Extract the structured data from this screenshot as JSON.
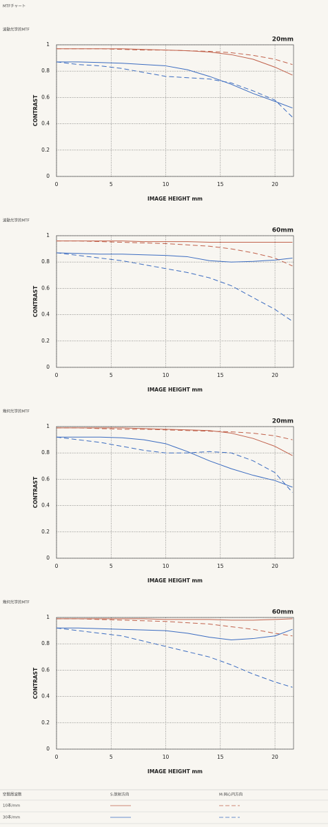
{
  "header": {
    "title": "MTFチャート"
  },
  "chart_data": [
    {
      "type": "line",
      "subtitle": "波動光学的MTF",
      "title": "20mm",
      "xlabel": "IMAGE HEIGHT  mm",
      "ylabel": "CONTRAST",
      "xlim": [
        0,
        21.7
      ],
      "xticks": [
        0,
        5,
        10,
        15,
        20
      ],
      "ylim": [
        0,
        1
      ],
      "yticks": [
        0,
        0.2,
        0.4,
        0.6,
        0.8,
        1
      ],
      "grid": true,
      "x": [
        0,
        2,
        4,
        6,
        8,
        10,
        12,
        14,
        16,
        18,
        20,
        21.6
      ],
      "series": [
        {
          "color": "#c0604a",
          "dash": false,
          "values": [
            0.97,
            0.97,
            0.97,
            0.97,
            0.965,
            0.96,
            0.955,
            0.945,
            0.925,
            0.89,
            0.83,
            0.77
          ]
        },
        {
          "color": "#c0604a",
          "dash": true,
          "values": [
            0.97,
            0.97,
            0.97,
            0.965,
            0.96,
            0.96,
            0.955,
            0.95,
            0.94,
            0.92,
            0.89,
            0.85
          ]
        },
        {
          "color": "#3a6bc0",
          "dash": false,
          "values": [
            0.87,
            0.87,
            0.865,
            0.86,
            0.85,
            0.84,
            0.81,
            0.76,
            0.7,
            0.63,
            0.57,
            0.52
          ]
        },
        {
          "color": "#3a6bc0",
          "dash": true,
          "values": [
            0.87,
            0.85,
            0.84,
            0.82,
            0.79,
            0.76,
            0.75,
            0.74,
            0.71,
            0.65,
            0.58,
            0.45
          ]
        }
      ]
    },
    {
      "type": "line",
      "subtitle": "波動光学的MTF",
      "title": "60mm",
      "xlabel": "IMAGE HEIGHT  mm",
      "ylabel": "CONTRAST",
      "xlim": [
        0,
        21.7
      ],
      "xticks": [
        0,
        5,
        10,
        15,
        20
      ],
      "ylim": [
        0,
        1
      ],
      "yticks": [
        0,
        0.2,
        0.4,
        0.6,
        0.8,
        1
      ],
      "grid": true,
      "x": [
        0,
        2,
        4,
        6,
        8,
        10,
        12,
        14,
        16,
        18,
        20,
        21.6
      ],
      "series": [
        {
          "color": "#c0604a",
          "dash": false,
          "values": [
            0.96,
            0.96,
            0.96,
            0.96,
            0.955,
            0.955,
            0.955,
            0.95,
            0.95,
            0.95,
            0.95,
            0.95
          ]
        },
        {
          "color": "#c0604a",
          "dash": true,
          "values": [
            0.96,
            0.96,
            0.955,
            0.95,
            0.945,
            0.94,
            0.93,
            0.92,
            0.9,
            0.87,
            0.83,
            0.77
          ]
        },
        {
          "color": "#3a6bc0",
          "dash": false,
          "values": [
            0.87,
            0.865,
            0.86,
            0.86,
            0.855,
            0.85,
            0.84,
            0.81,
            0.8,
            0.805,
            0.815,
            0.83
          ]
        },
        {
          "color": "#3a6bc0",
          "dash": true,
          "values": [
            0.87,
            0.85,
            0.83,
            0.81,
            0.78,
            0.75,
            0.72,
            0.68,
            0.62,
            0.53,
            0.44,
            0.35
          ]
        }
      ]
    },
    {
      "type": "line",
      "subtitle": "幾何光学的MTF",
      "title": "20mm",
      "xlabel": "IMAGE HEIGHT  mm",
      "ylabel": "CONTRAST",
      "xlim": [
        0,
        21.7
      ],
      "xticks": [
        0,
        5,
        10,
        15,
        20
      ],
      "ylim": [
        0,
        1
      ],
      "yticks": [
        0,
        0.2,
        0.4,
        0.6,
        0.8,
        1
      ],
      "grid": true,
      "x": [
        0,
        2,
        4,
        6,
        8,
        10,
        12,
        14,
        16,
        18,
        20,
        21.6
      ],
      "series": [
        {
          "color": "#c0604a",
          "dash": false,
          "values": [
            0.99,
            0.99,
            0.99,
            0.99,
            0.985,
            0.98,
            0.975,
            0.97,
            0.95,
            0.91,
            0.85,
            0.78
          ]
        },
        {
          "color": "#c0604a",
          "dash": true,
          "values": [
            0.99,
            0.99,
            0.985,
            0.98,
            0.98,
            0.975,
            0.97,
            0.965,
            0.96,
            0.95,
            0.93,
            0.9
          ]
        },
        {
          "color": "#3a6bc0",
          "dash": false,
          "values": [
            0.92,
            0.92,
            0.92,
            0.915,
            0.9,
            0.87,
            0.81,
            0.74,
            0.68,
            0.63,
            0.59,
            0.54
          ]
        },
        {
          "color": "#3a6bc0",
          "dash": true,
          "values": [
            0.92,
            0.9,
            0.88,
            0.85,
            0.82,
            0.8,
            0.8,
            0.81,
            0.8,
            0.74,
            0.65,
            0.5
          ]
        }
      ]
    },
    {
      "type": "line",
      "subtitle": "幾何光学的MTF",
      "title": "60mm",
      "xlabel": "IMAGE HEIGHT  mm",
      "ylabel": "CONTRAST",
      "xlim": [
        0,
        21.7
      ],
      "xticks": [
        0,
        5,
        10,
        15,
        20
      ],
      "ylim": [
        0,
        1
      ],
      "yticks": [
        0,
        0.2,
        0.4,
        0.6,
        0.8,
        1
      ],
      "grid": true,
      "x": [
        0,
        2,
        4,
        6,
        8,
        10,
        12,
        14,
        16,
        18,
        20,
        21.6
      ],
      "series": [
        {
          "color": "#c0604a",
          "dash": false,
          "values": [
            0.99,
            0.99,
            0.99,
            0.99,
            0.99,
            0.985,
            0.985,
            0.985,
            0.98,
            0.98,
            0.985,
            0.99
          ]
        },
        {
          "color": "#c0604a",
          "dash": true,
          "values": [
            0.99,
            0.99,
            0.985,
            0.98,
            0.975,
            0.97,
            0.96,
            0.95,
            0.93,
            0.91,
            0.88,
            0.86
          ]
        },
        {
          "color": "#3a6bc0",
          "dash": false,
          "values": [
            0.92,
            0.92,
            0.915,
            0.91,
            0.905,
            0.9,
            0.88,
            0.85,
            0.83,
            0.84,
            0.86,
            0.91
          ]
        },
        {
          "color": "#3a6bc0",
          "dash": true,
          "values": [
            0.92,
            0.9,
            0.88,
            0.86,
            0.82,
            0.78,
            0.74,
            0.7,
            0.64,
            0.57,
            0.51,
            0.47
          ]
        }
      ]
    }
  ],
  "legend_table": {
    "headers": [
      "空間周波数",
      "S:放射方向",
      "M:同心円方向"
    ],
    "rows": [
      "10本/mm",
      "30本/mm"
    ]
  }
}
